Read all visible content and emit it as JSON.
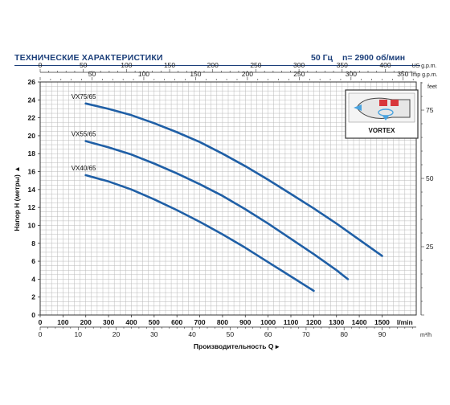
{
  "header": {
    "title": "ТЕХНИЧЕСКИЕ ХАРАКТЕРИСТИКИ",
    "frequency": "50 Гц",
    "speed": "n= 2900 об/мин"
  },
  "colors": {
    "header_text": "#1c3f7a",
    "curve": "#1f5fa6",
    "grid": "#b9b9b9",
    "frame": "#333333"
  },
  "inset": {
    "label": "VORTEX",
    "icon": "vortex-pump-impeller-icon"
  },
  "chart_data": {
    "type": "line",
    "title": "",
    "ylabel": "Напор Н (метры)",
    "xlabel": "Производительность Q",
    "ylim": [
      0,
      26
    ],
    "xlim": [
      0,
      1650
    ],
    "grid": true,
    "y_ticks": [
      0,
      2,
      4,
      6,
      8,
      10,
      12,
      14,
      16,
      18,
      20,
      22,
      24,
      26
    ],
    "x_ticks": [
      0,
      100,
      200,
      300,
      400,
      500,
      600,
      700,
      800,
      900,
      1000,
      1100,
      1200,
      1300,
      1400,
      1500
    ],
    "x_unit": "l/min",
    "secondary_axes": {
      "m3h": {
        "unit": "m³/h",
        "ticks": [
          0,
          10,
          20,
          30,
          40,
          50,
          60,
          70,
          80,
          90
        ],
        "factor_lmin": 16.6667
      },
      "us_gpm": {
        "unit": "US g.p.m.",
        "ticks": [
          0,
          50,
          100,
          150,
          200,
          250,
          300,
          350,
          400
        ],
        "factor_lmin": 3.7854
      },
      "imp_gpm": {
        "unit": "Imp g.p.m.",
        "ticks": [
          0,
          50,
          100,
          150,
          200,
          250,
          300,
          350
        ],
        "factor_lmin": 4.5461
      },
      "feet": {
        "unit": "feet",
        "ticks": [
          0,
          25,
          50,
          75
        ],
        "factor_m": 3.2808
      }
    },
    "series": [
      {
        "name": "VX75/65",
        "x": [
          200,
          300,
          400,
          500,
          600,
          700,
          800,
          900,
          1000,
          1100,
          1200,
          1300,
          1400,
          1500
        ],
        "y": [
          23.6,
          23.0,
          22.3,
          21.4,
          20.4,
          19.3,
          18.0,
          16.6,
          15.1,
          13.5,
          11.9,
          10.2,
          8.4,
          6.6
        ]
      },
      {
        "name": "VX55/65",
        "x": [
          200,
          300,
          400,
          500,
          600,
          700,
          800,
          900,
          1000,
          1100,
          1200,
          1300,
          1350
        ],
        "y": [
          19.4,
          18.7,
          17.9,
          16.9,
          15.8,
          14.6,
          13.3,
          11.8,
          10.2,
          8.5,
          6.8,
          5.0,
          4.0
        ]
      },
      {
        "name": "VX40/65",
        "x": [
          200,
          300,
          400,
          500,
          600,
          700,
          800,
          900,
          1000,
          1100,
          1200
        ],
        "y": [
          15.6,
          14.9,
          14.0,
          12.9,
          11.7,
          10.4,
          9.0,
          7.5,
          5.9,
          4.3,
          2.7
        ]
      }
    ]
  }
}
